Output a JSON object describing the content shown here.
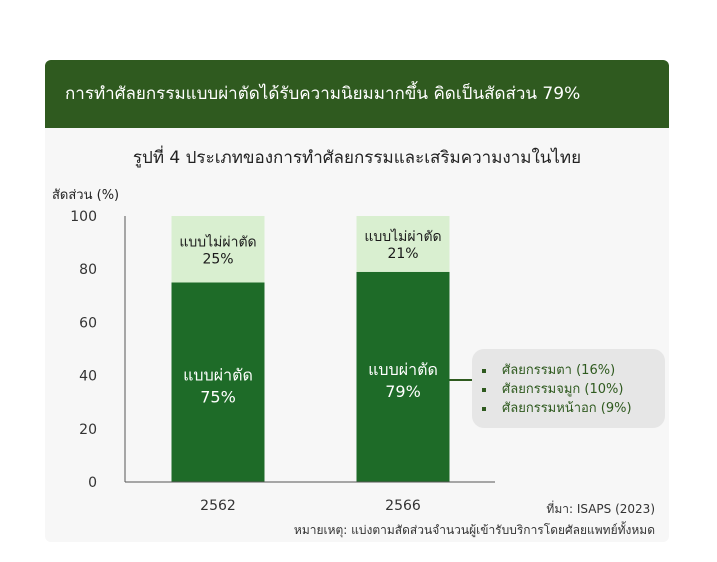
{
  "banner": {
    "title": "การทำศัลยกรรมแบบผ่าตัดได้รับความนิยมมากขึ้น คิดเป็นสัดส่วน 79%"
  },
  "colors": {
    "banner": "#2f5a1f",
    "surgical": "#1e6b28",
    "non_surgical": "#d9efd0",
    "legend_text": "#2f5a1f"
  },
  "chart_data": {
    "type": "bar",
    "stacked": true,
    "title": "รูปที่ 4 ประเภทของการทำศัลยกรรมและเสริมความงามในไทย",
    "ylabel": "สัดส่วน (%)",
    "xlabel": "",
    "ylim": [
      0,
      100
    ],
    "yticks": [
      0,
      20,
      40,
      60,
      80,
      100
    ],
    "categories": [
      "2562",
      "2566"
    ],
    "series": [
      {
        "name": "แบบผ่าตัด",
        "values": [
          75,
          79
        ],
        "labels": [
          "75%",
          "79%"
        ]
      },
      {
        "name": "แบบไม่ผ่าตัด",
        "values": [
          25,
          21
        ],
        "labels": [
          "25%",
          "21%"
        ]
      }
    ],
    "breakdown": [
      "ศัลยกรรมตา (16%)",
      "ศัลยกรรมจมูก (10%)",
      "ศัลยกรรมหน้าอก (9%)"
    ]
  },
  "footer": {
    "source": "ที่มา: ISAPS (2023)",
    "note": "หมายเหตุ: แบ่งตามสัดส่วนจำนวนผู้เข้ารับบริการโดยศัลยแพทย์ทั้งหมด"
  }
}
